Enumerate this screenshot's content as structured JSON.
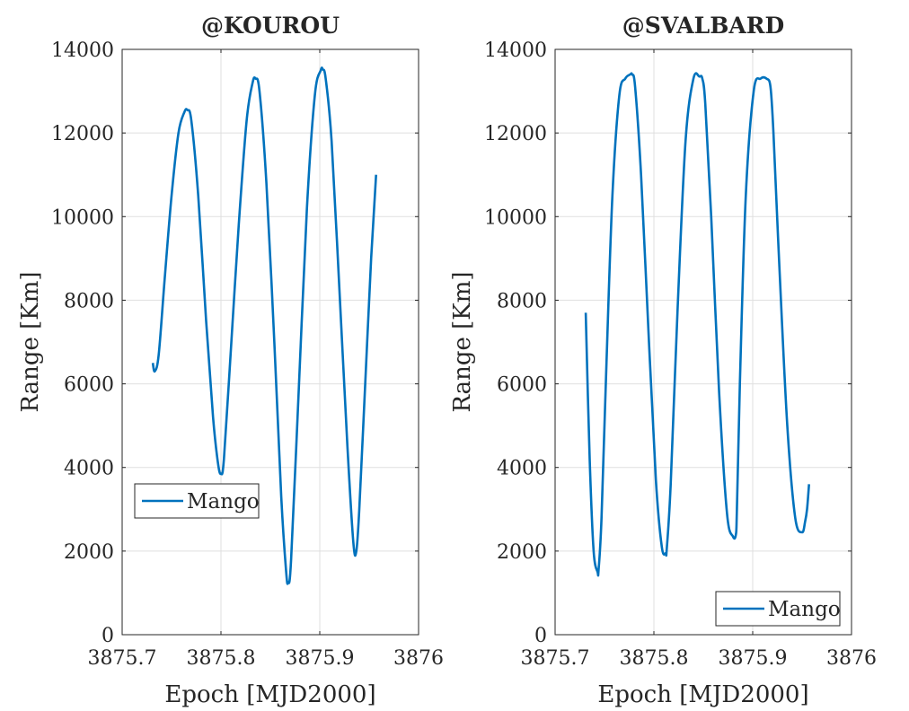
{
  "colors": {
    "series": "#0072BD",
    "grid": "#dfdfdf",
    "axis": "#262626"
  },
  "chart_data": [
    {
      "type": "line",
      "title": "@KOUROU",
      "xlabel": "Epoch [MJD2000]",
      "ylabel": "Range [Km]",
      "xlim": [
        3875.7,
        3876
      ],
      "ylim": [
        0,
        14000
      ],
      "xticks": [
        3875.7,
        3875.8,
        3875.9,
        3876
      ],
      "xtick_labels": [
        "3875.7",
        "3875.8",
        "3875.9",
        "3876"
      ],
      "yticks": [
        0,
        2000,
        4000,
        6000,
        8000,
        10000,
        12000,
        14000
      ],
      "ytick_labels": [
        "0",
        "2000",
        "4000",
        "6000",
        "8000",
        "10000",
        "12000",
        "14000"
      ],
      "grid": true,
      "legend_position": "middle-left",
      "series": [
        {
          "name": "Mango",
          "x": [
            3875.731,
            3875.733,
            3875.737,
            3875.743,
            3875.75,
            3875.757,
            3875.763,
            3875.766,
            3875.77,
            3875.777,
            3875.785,
            3875.792,
            3875.797,
            3875.8,
            3875.803,
            3875.81,
            3875.818,
            3875.826,
            3875.832,
            3875.835,
            3875.839,
            3875.846,
            3875.854,
            3875.861,
            3875.866,
            3875.868,
            3875.871,
            3875.879,
            3875.887,
            3875.895,
            3875.901,
            3875.903,
            3875.906,
            3875.912,
            3875.92,
            3875.928,
            3875.934,
            3875.937,
            3875.94,
            3875.946,
            3875.952,
            3875.957
          ],
          "y": [
            6500,
            6300,
            6700,
            8500,
            10500,
            12000,
            12500,
            12550,
            12300,
            10500,
            7500,
            5200,
            4100,
            3850,
            4200,
            6800,
            9800,
            12300,
            13200,
            13300,
            13000,
            10800,
            7000,
            3300,
            1500,
            1250,
            1800,
            6000,
            10200,
            12900,
            13500,
            13520,
            13300,
            11800,
            8200,
            4500,
            2200,
            2000,
            3000,
            6000,
            9000,
            11000
          ]
        }
      ]
    },
    {
      "type": "line",
      "title": "@SVALBARD",
      "xlabel": "Epoch [MJD2000]",
      "ylabel": "Range [Km]",
      "xlim": [
        3875.7,
        3876
      ],
      "ylim": [
        0,
        14000
      ],
      "xticks": [
        3875.7,
        3875.8,
        3875.9,
        3876
      ],
      "xtick_labels": [
        "3875.7",
        "3875.8",
        "3875.9",
        "3876"
      ],
      "yticks": [
        0,
        2000,
        4000,
        6000,
        8000,
        10000,
        12000,
        14000
      ],
      "ytick_labels": [
        "0",
        "2000",
        "4000",
        "6000",
        "8000",
        "10000",
        "12000",
        "14000"
      ],
      "grid": true,
      "legend_position": "bottom-right",
      "series": [
        {
          "name": "Mango",
          "x": [
            3875.731,
            3875.735,
            3875.739,
            3875.743,
            3875.744,
            3875.747,
            3875.752,
            3875.758,
            3875.765,
            3875.771,
            3875.776,
            3875.778,
            3875.781,
            3875.787,
            3875.795,
            3875.802,
            3875.808,
            3875.812,
            3875.813,
            3875.817,
            3875.824,
            3875.832,
            3875.84,
            3875.846,
            3875.849,
            3875.852,
            3875.858,
            3875.866,
            3875.874,
            3875.88,
            3875.883,
            3875.884,
            3875.887,
            3875.893,
            3875.901,
            3875.908,
            3875.914,
            3875.918,
            3875.921,
            3875.927,
            3875.935,
            3875.943,
            3875.95,
            3875.953,
            3875.955,
            3875.957
          ],
          "y": [
            7700,
            4200,
            2000,
            1500,
            1550,
            2800,
            6500,
            10500,
            12900,
            13300,
            13400,
            13400,
            13100,
            11000,
            7000,
            3700,
            2100,
            1950,
            2050,
            3600,
            7800,
            11800,
            13300,
            13350,
            13300,
            12700,
            10000,
            5800,
            2900,
            2350,
            2400,
            3000,
            6000,
            10500,
            13000,
            13300,
            13300,
            13100,
            12000,
            8800,
            5000,
            2800,
            2450,
            2700,
            3000,
            3600
          ]
        }
      ]
    }
  ]
}
